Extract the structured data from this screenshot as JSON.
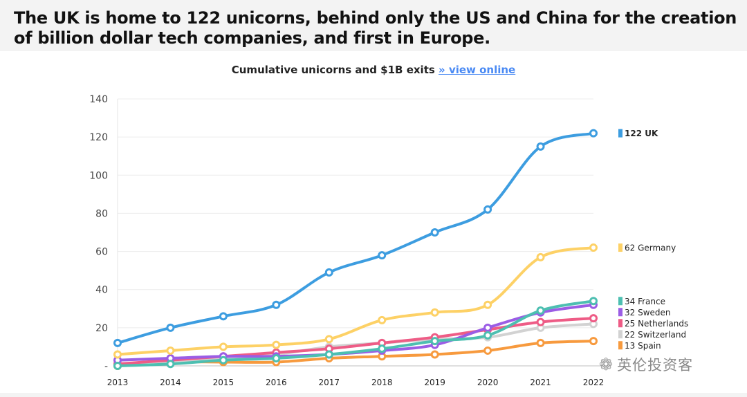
{
  "headline": "The UK is home to 122 unicorns, behind only the US and China for the creation of billion dollar tech companies, and first in Europe.",
  "chart_title": {
    "text": "Cumulative unicorns and $1B exits",
    "link_text": "» view online"
  },
  "watermark": {
    "text": "英伦投资客",
    "icon": "wechat-icon"
  },
  "chart_data": {
    "type": "line",
    "title": "Cumulative unicorns and $1B exits",
    "xlabel": "",
    "ylabel": "",
    "x": [
      "2013",
      "2014",
      "2015",
      "2016",
      "2017",
      "2018",
      "2019",
      "2020",
      "2021",
      "2022"
    ],
    "ylim": [
      0,
      140
    ],
    "yticks": [
      0,
      20,
      40,
      60,
      80,
      100,
      120,
      140
    ],
    "ytick_labels": [
      "-",
      "20",
      "40",
      "60",
      "80",
      "100",
      "120",
      "140"
    ],
    "grid": true,
    "legend_position": "right",
    "series": [
      {
        "name": "Spain",
        "label": "13 Spain",
        "color": "#f79a3e",
        "values": [
          0,
          2,
          2,
          2,
          4,
          5,
          6,
          8,
          12,
          13
        ]
      },
      {
        "name": "Switzerland",
        "label": "22 Switzerland",
        "color": "#d2d2d2",
        "values": [
          1,
          2,
          4,
          6,
          10,
          12,
          14,
          15,
          20,
          22
        ]
      },
      {
        "name": "Netherlands",
        "label": "25 Netherlands",
        "color": "#ee5c86",
        "values": [
          1,
          3,
          5,
          7,
          9,
          12,
          15,
          19,
          23,
          25
        ]
      },
      {
        "name": "Sweden",
        "label": "32 Sweden",
        "color": "#9b5de5",
        "values": [
          3,
          4,
          5,
          5,
          6,
          8,
          11,
          20,
          28,
          32
        ]
      },
      {
        "name": "France",
        "label": "34 France",
        "color": "#4dbfb1",
        "values": [
          0,
          1,
          3,
          4,
          6,
          9,
          13,
          16,
          29,
          34
        ]
      },
      {
        "name": "Germany",
        "label": "62 Germany",
        "color": "#fdd166",
        "values": [
          6,
          8,
          10,
          11,
          14,
          24,
          28,
          32,
          57,
          62
        ]
      },
      {
        "name": "UK",
        "label": "122 UK",
        "color": "#3d9de0",
        "values": [
          12,
          20,
          26,
          32,
          49,
          58,
          70,
          82,
          115,
          122
        ],
        "bold": true
      }
    ]
  }
}
